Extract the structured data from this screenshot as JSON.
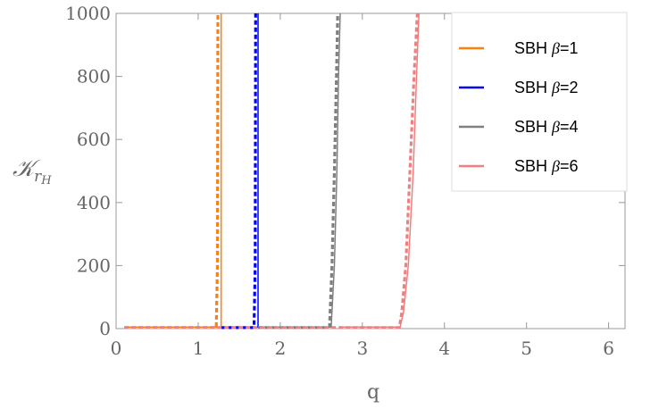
{
  "chart_data": {
    "type": "line",
    "xlabel": "q",
    "ylabel": "𝒦",
    "ylabel_subscript": "r",
    "ylabel_subsubscript": "H",
    "xlim": [
      0,
      6.2
    ],
    "ylim": [
      0,
      1000
    ],
    "xticks": [
      0,
      1,
      2,
      3,
      4,
      5,
      6
    ],
    "yticks": [
      0,
      200,
      400,
      600,
      800,
      1000
    ],
    "grid": false,
    "legend_position": "top-right",
    "series": [
      {
        "name": "SBH β=1",
        "legend_prefix": "SBH ",
        "legend_symbol": "β",
        "legend_suffix": "=1",
        "color": "#ff7f0e",
        "solid": [
          [
            0.1,
            5
          ],
          [
            1.28,
            5
          ],
          [
            1.28,
            1000
          ]
        ],
        "dashed": [
          [
            0.1,
            3
          ],
          [
            1.22,
            3
          ],
          [
            1.235,
            200
          ],
          [
            1.24,
            1000
          ]
        ]
      },
      {
        "name": "SBH β=2",
        "legend_prefix": "SBH ",
        "legend_symbol": "β",
        "legend_suffix": "=2",
        "color": "#0000ff",
        "solid": [
          [
            1.28,
            5
          ],
          [
            1.73,
            5
          ],
          [
            1.73,
            1000
          ]
        ],
        "dashed": [
          [
            1.28,
            3
          ],
          [
            1.68,
            3
          ],
          [
            1.695,
            200
          ],
          [
            1.7,
            1000
          ]
        ]
      },
      {
        "name": "SBH β=4",
        "legend_prefix": "SBH ",
        "legend_symbol": "β",
        "legend_suffix": "=4",
        "color": "#808080",
        "solid": [
          [
            1.73,
            5
          ],
          [
            2.62,
            5
          ],
          [
            2.66,
            200
          ],
          [
            2.69,
            500
          ],
          [
            2.71,
            800
          ],
          [
            2.73,
            1000
          ]
        ],
        "dashed": [
          [
            1.73,
            3
          ],
          [
            2.6,
            3
          ],
          [
            2.63,
            200
          ],
          [
            2.66,
            500
          ],
          [
            2.685,
            800
          ],
          [
            2.7,
            1000
          ]
        ]
      },
      {
        "name": "SBH β=6",
        "legend_prefix": "SBH ",
        "legend_symbol": "β",
        "legend_suffix": "=6",
        "color": "#f08080",
        "solid": [
          [
            2.73,
            5
          ],
          [
            3.46,
            5
          ],
          [
            3.5,
            50
          ],
          [
            3.56,
            200
          ],
          [
            3.62,
            500
          ],
          [
            3.66,
            800
          ],
          [
            3.69,
            1000
          ]
        ],
        "dashed": [
          [
            0.1,
            3
          ],
          [
            3.45,
            3
          ],
          [
            3.48,
            50
          ],
          [
            3.53,
            200
          ],
          [
            3.58,
            500
          ],
          [
            3.63,
            800
          ],
          [
            3.67,
            1000
          ]
        ]
      }
    ]
  }
}
